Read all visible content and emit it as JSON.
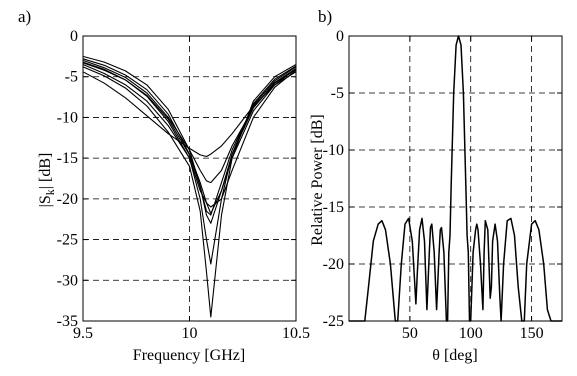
{
  "chart_data": [
    {
      "panel_label": "a)",
      "type": "line",
      "xlabel": "Frequency [GHz]",
      "ylabel_main": "|S",
      "ylabel_sub": "k",
      "ylabel_end": "| [dB]",
      "xlim": [
        9.5,
        10.5
      ],
      "ylim": [
        -35,
        0
      ],
      "xticks": [
        9.5,
        10,
        10.5
      ],
      "xtick_labels": [
        "9.5",
        "10",
        "10.5"
      ],
      "yticks": [
        0,
        -5,
        -10,
        -15,
        -20,
        -25,
        -30,
        -35
      ],
      "ytick_labels": [
        "0",
        "-5",
        "-10",
        "-15",
        "-20",
        "-25",
        "-30",
        "-35"
      ],
      "grid": true,
      "series": [
        {
          "x": [
            9.5,
            9.6,
            9.7,
            9.8,
            9.9,
            10.0,
            10.05,
            10.08,
            10.1,
            10.15,
            10.2,
            10.3,
            10.4,
            10.5
          ],
          "y": [
            -2.5,
            -3.2,
            -4.3,
            -6.0,
            -9.0,
            -14.0,
            -18.5,
            -21.5,
            -22.0,
            -18.0,
            -14.0,
            -8.5,
            -5.5,
            -3.8
          ]
        },
        {
          "x": [
            9.5,
            9.6,
            9.7,
            9.8,
            9.9,
            10.0,
            10.05,
            10.08,
            10.1,
            10.15,
            10.2,
            10.3,
            10.4,
            10.5
          ],
          "y": [
            -2.8,
            -3.6,
            -4.8,
            -6.6,
            -9.6,
            -14.5,
            -18.0,
            -20.5,
            -21.8,
            -19.0,
            -15.0,
            -9.2,
            -6.0,
            -4.0
          ]
        },
        {
          "x": [
            9.5,
            9.6,
            9.7,
            9.8,
            9.9,
            10.0,
            10.05,
            10.08,
            10.1,
            10.15,
            10.2,
            10.3,
            10.4,
            10.5
          ],
          "y": [
            -3.0,
            -3.9,
            -5.1,
            -7.0,
            -10.0,
            -14.0,
            -16.5,
            -17.8,
            -18.0,
            -16.5,
            -13.5,
            -8.8,
            -5.8,
            -4.1
          ]
        },
        {
          "x": [
            9.5,
            9.6,
            9.7,
            9.8,
            9.9,
            10.0,
            10.05,
            10.08,
            10.1,
            10.15,
            10.2,
            10.3,
            10.4,
            10.5
          ],
          "y": [
            -3.3,
            -4.2,
            -5.4,
            -7.3,
            -10.2,
            -14.6,
            -18.5,
            -22.0,
            -23.0,
            -19.0,
            -14.5,
            -8.8,
            -5.7,
            -4.0
          ]
        },
        {
          "x": [
            9.5,
            9.6,
            9.7,
            9.8,
            9.9,
            10.0,
            10.05,
            10.08,
            10.1,
            10.15,
            10.2,
            10.3,
            10.4,
            10.5
          ],
          "y": [
            -3.5,
            -4.6,
            -6.0,
            -8.0,
            -11.0,
            -15.0,
            -20.0,
            -25.0,
            -28.0,
            -20.0,
            -14.5,
            -8.3,
            -5.3,
            -3.7
          ]
        },
        {
          "x": [
            9.5,
            9.6,
            9.7,
            9.8,
            9.9,
            10.0,
            10.05,
            10.08,
            10.1,
            10.15,
            10.2,
            10.3,
            10.4,
            10.5
          ],
          "y": [
            -3.8,
            -4.9,
            -6.4,
            -8.6,
            -11.8,
            -16.0,
            -21.5,
            -29.0,
            -34.5,
            -22.0,
            -15.0,
            -8.0,
            -5.0,
            -3.5
          ]
        },
        {
          "x": [
            9.5,
            9.6,
            9.7,
            9.8,
            9.9,
            10.0,
            10.05,
            10.08,
            10.1,
            10.15,
            10.2,
            10.3,
            10.4,
            10.5
          ],
          "y": [
            -4.4,
            -5.8,
            -7.6,
            -9.8,
            -12.0,
            -13.8,
            -14.6,
            -14.8,
            -14.5,
            -13.5,
            -12.0,
            -8.6,
            -6.0,
            -4.4
          ]
        },
        {
          "x": [
            9.5,
            9.6,
            9.7,
            9.8,
            9.9,
            10.0,
            10.05,
            10.08,
            10.1,
            10.15,
            10.2,
            10.3,
            10.4,
            10.5
          ],
          "y": [
            -3.2,
            -4.1,
            -5.4,
            -7.4,
            -10.5,
            -15.0,
            -19.0,
            -20.5,
            -21.0,
            -20.0,
            -16.5,
            -10.0,
            -6.3,
            -4.2
          ]
        }
      ]
    },
    {
      "panel_label": "b)",
      "type": "line",
      "xlabel": "θ [deg]",
      "ylabel": "Relative Power [dB]",
      "xlim": [
        0,
        175
      ],
      "ylim": [
        -25,
        0
      ],
      "xticks": [
        50,
        100,
        150
      ],
      "xtick_labels": [
        "50",
        "100",
        "150"
      ],
      "yticks": [
        0,
        -5,
        -10,
        -15,
        -20,
        -25
      ],
      "ytick_labels": [
        "0",
        "-5",
        "-10",
        "-15",
        "-20",
        "-25"
      ],
      "grid_x": [
        0,
        50,
        100,
        150
      ],
      "grid": true,
      "series": [
        {
          "x": [
            0,
            5,
            10,
            13,
            16,
            20,
            24,
            27,
            30,
            34,
            38,
            40,
            43,
            46,
            49,
            52,
            55,
            56,
            58,
            60,
            62,
            64,
            66,
            67,
            68,
            70,
            72,
            74,
            75,
            76,
            78,
            80,
            81,
            82,
            83,
            84,
            86,
            88,
            90,
            92,
            94,
            96,
            97,
            98,
            99,
            100,
            102,
            104,
            105,
            106,
            108,
            110,
            111,
            112,
            114,
            116,
            117,
            118,
            120,
            122,
            124,
            125,
            127,
            130,
            133,
            136,
            139,
            142,
            144,
            146,
            150,
            153,
            156,
            160,
            163,
            166,
            170,
            175
          ],
          "y": [
            -25,
            -25,
            -25,
            -25,
            -22,
            -18,
            -16.5,
            -16.2,
            -17,
            -20,
            -25,
            -25,
            -20,
            -16.5,
            -16.0,
            -18,
            -23.5,
            -21,
            -17,
            -16.0,
            -18,
            -24,
            -19,
            -16.8,
            -16.5,
            -19,
            -24,
            -19,
            -17.0,
            -16.8,
            -19,
            -25,
            -25,
            -19,
            -17.5,
            -13,
            -5,
            -0.8,
            0,
            -0.8,
            -5,
            -13,
            -17.5,
            -19,
            -25,
            -25,
            -19,
            -17.0,
            -16.5,
            -17.0,
            -20,
            -24,
            -19,
            -16.2,
            -17,
            -23,
            -22,
            -18,
            -16.5,
            -18,
            -23,
            -25,
            -20,
            -16.2,
            -16.0,
            -17.5,
            -22,
            -25,
            -25,
            -20,
            -16.5,
            -16.2,
            -17,
            -20,
            -24,
            -25,
            -25,
            -25
          ]
        }
      ]
    }
  ]
}
